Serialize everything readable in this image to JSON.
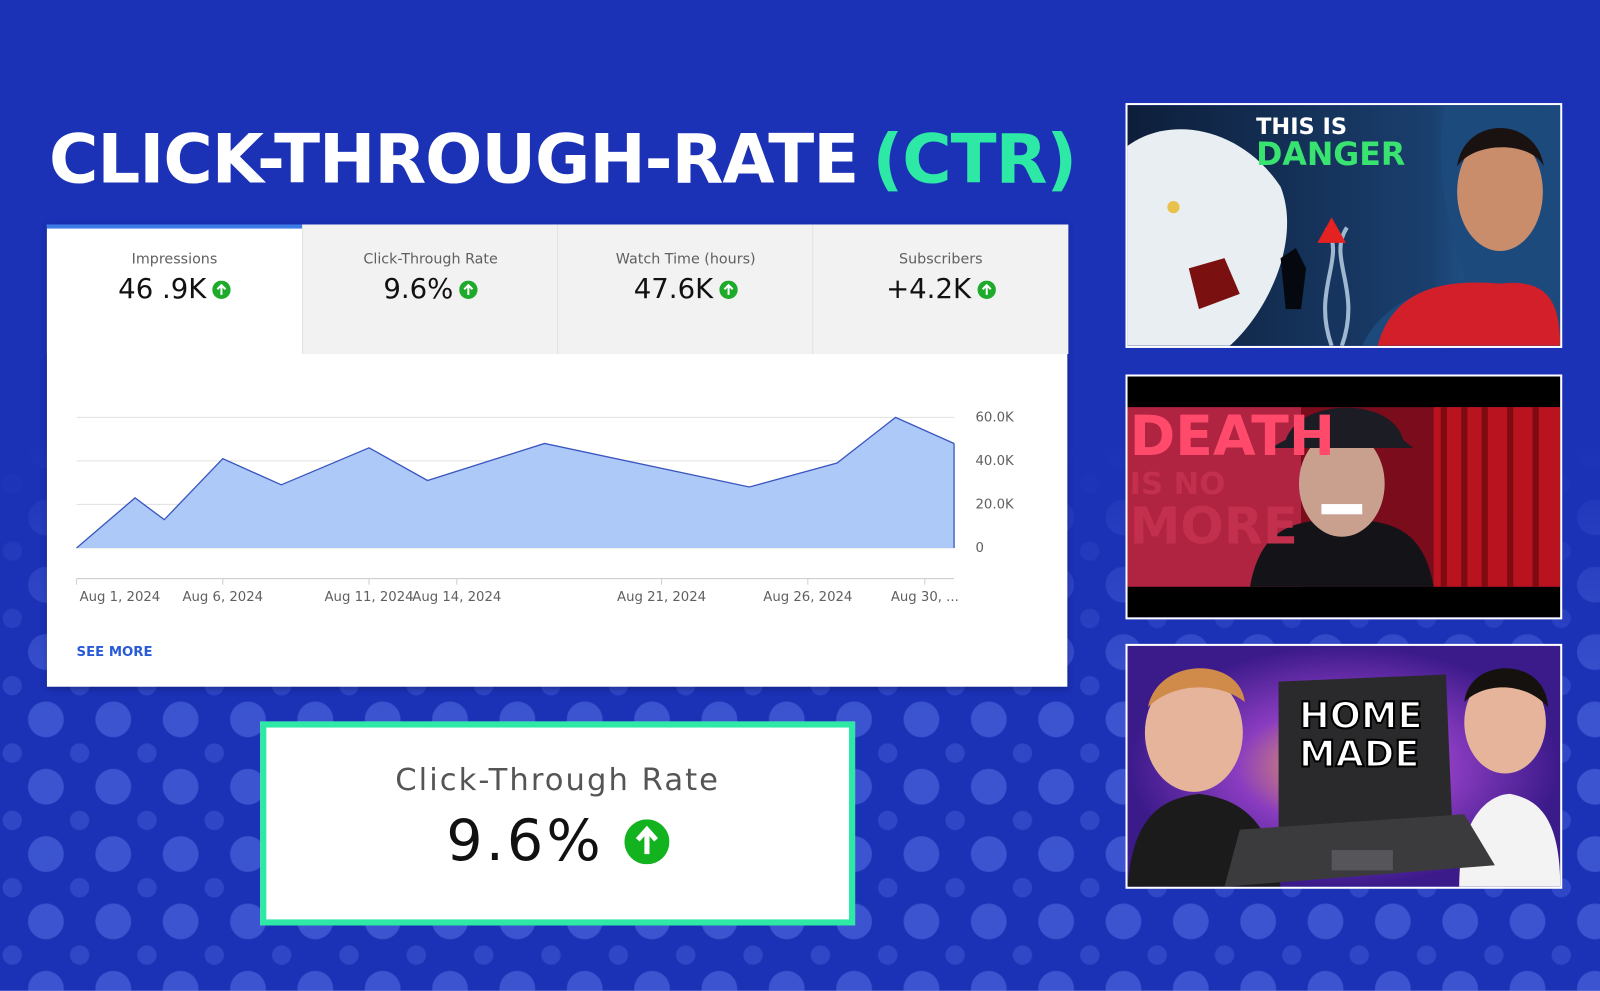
{
  "header": {
    "title": "CLICK-THROUGH-RATE",
    "title_accent": "(CTR)"
  },
  "metrics": [
    {
      "label": "Impressions",
      "value": "46 .9K"
    },
    {
      "label": "Click-Through Rate",
      "value": "9.6%"
    },
    {
      "label": "Watch Time (hours)",
      "value": "47.6K"
    },
    {
      "label": "Subscribers",
      "value": "+4.2K"
    }
  ],
  "chart_data": {
    "type": "area",
    "color": "#3a56c0",
    "fill": "#adc9f7",
    "x": [
      1,
      3,
      4,
      6,
      8,
      11,
      13,
      17,
      24,
      27,
      29,
      31
    ],
    "values": [
      0,
      23000,
      13000,
      41000,
      29000,
      46000,
      31000,
      48000,
      28000,
      39000,
      60000,
      48000
    ],
    "xlim": [
      1,
      31
    ],
    "xticks": [
      {
        "value": 1,
        "label": "Aug 1, 2024"
      },
      {
        "value": 6,
        "label": "Aug 6, 2024"
      },
      {
        "value": 11,
        "label": "Aug 11, 2024"
      },
      {
        "value": 14,
        "label": "Aug 14, 2024"
      },
      {
        "value": 21,
        "label": "Aug 21, 2024"
      },
      {
        "value": 26,
        "label": "Aug 26, 2024"
      },
      {
        "value": 30,
        "label": "Aug 30, ..."
      }
    ],
    "ylim": [
      0,
      60000
    ],
    "yticks": [
      0,
      {
        "value": 20000,
        "label": "20.0K"
      },
      {
        "value": 40000,
        "label": "40.0K"
      },
      {
        "value": 60000,
        "label": "60.0K"
      }
    ],
    "grid": true
  },
  "see_more": "SEE MORE",
  "highlight": {
    "label": "Click-Through Rate",
    "value": "9.6%"
  },
  "thumbnails": [
    {
      "lines": [
        "THIS IS",
        "DANGER"
      ]
    },
    {
      "lines": [
        "DEATH",
        "IS NO",
        "MORE"
      ]
    },
    {
      "lines": [
        "HOME",
        "MADE"
      ]
    }
  ]
}
